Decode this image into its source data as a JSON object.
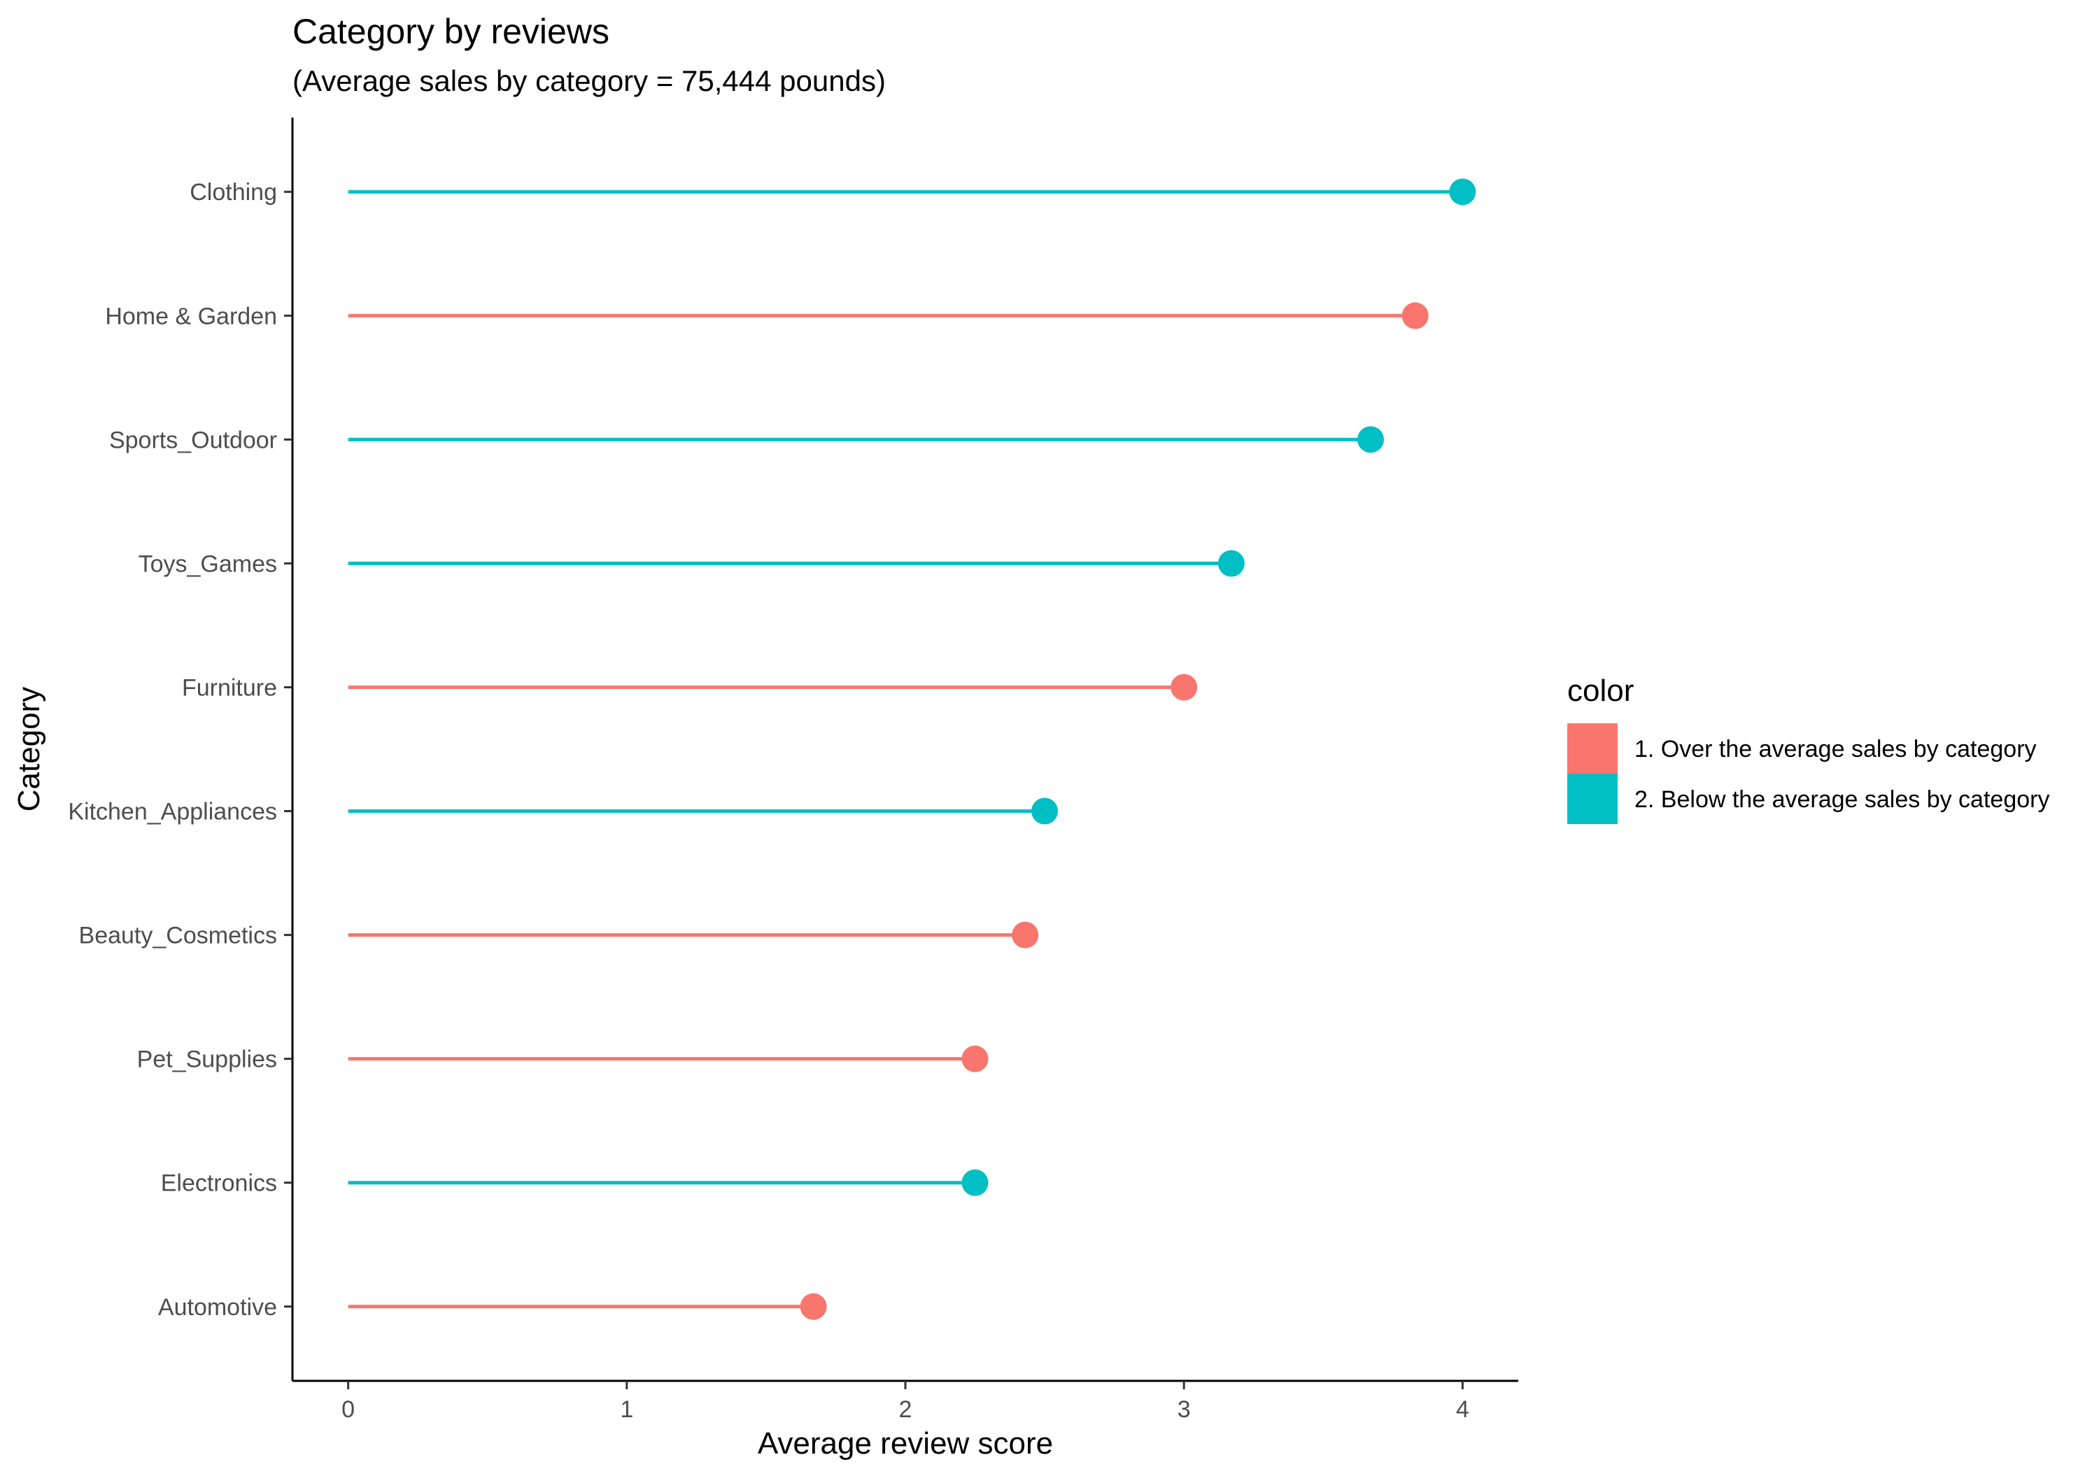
{
  "chart_data": {
    "type": "lollipop",
    "title": "Category by reviews",
    "subtitle": "(Average sales by category = 75,444 pounds)",
    "xlabel": "Average review score",
    "ylabel": "Category",
    "xlim": [
      -0.2,
      4.2
    ],
    "x_ticks": [
      0,
      1,
      2,
      3,
      4
    ],
    "grid": false,
    "legend": {
      "title": "color",
      "placement": "right",
      "entries": [
        {
          "key": "over",
          "label": "1. Over the average sales by category",
          "color": "#F8766D"
        },
        {
          "key": "below",
          "label": "2. Below the average sales by category",
          "color": "#00BFC4"
        }
      ]
    },
    "categories": [
      "Clothing",
      "Home & Garden",
      "Sports_Outdoor",
      "Toys_Games",
      "Furniture",
      "Kitchen_Appliances",
      "Beauty_Cosmetics",
      "Pet_Supplies",
      "Electronics",
      "Automotive"
    ],
    "values": [
      4.0,
      3.83,
      3.67,
      3.17,
      3.0,
      2.5,
      2.43,
      2.25,
      2.25,
      1.67
    ],
    "groups": [
      "below",
      "over",
      "below",
      "below",
      "over",
      "below",
      "over",
      "over",
      "below",
      "over"
    ]
  }
}
